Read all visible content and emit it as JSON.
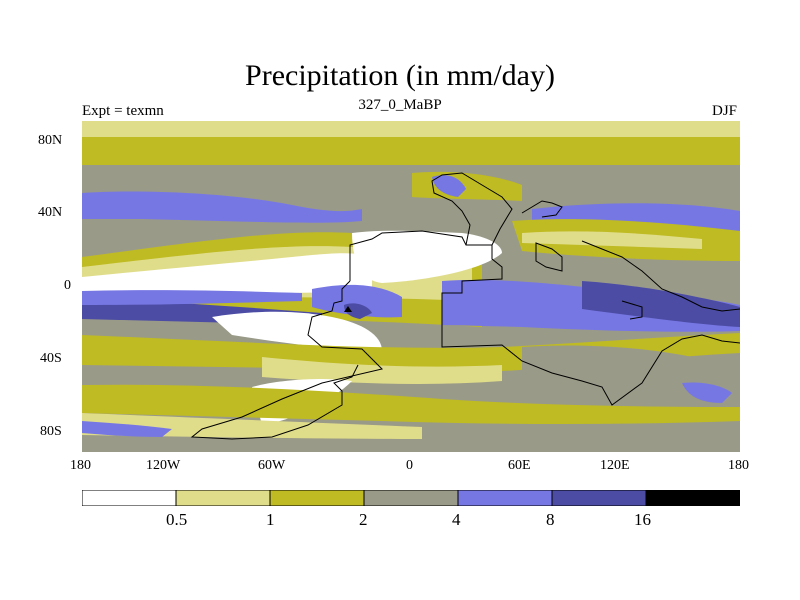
{
  "title": "Precipitation (in mm/day)",
  "subtitle": "327_0_MaBP",
  "experiment_label": "Expt = texmn",
  "season_label": "DJF",
  "axes": {
    "lat_ticks": [
      "80N",
      "40N",
      "0",
      "40S",
      "80S"
    ],
    "lon_ticks": [
      "180",
      "120W",
      "60W",
      "0",
      "60E",
      "120E",
      "180"
    ]
  },
  "colorbar": {
    "bin_labels": [
      "0.5",
      "1",
      "2",
      "4",
      "8",
      "16"
    ],
    "colors": [
      "#ffffff",
      "#e0dd8a",
      "#bfbb23",
      "#9a9a88",
      "#7777e4",
      "#4c4ca4",
      "#000000"
    ]
  },
  "palette": {
    "white": "#ffffff",
    "light_yellow": "#e0dd8a",
    "olive": "#bfbb23",
    "gray": "#9a9a88",
    "light_blue": "#7777e4",
    "dark_blue": "#4c4ca4",
    "black": "#000000"
  }
}
